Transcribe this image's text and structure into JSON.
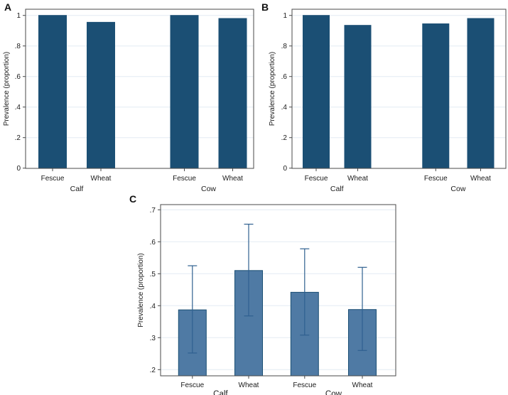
{
  "figure": {
    "title": "",
    "ylabel_shared": "Prevalence (proportion)"
  },
  "colors": {
    "bar_dark": "#1b4f74",
    "bar_medium": "#4f7aa4",
    "bar_border": "#1b4f74",
    "error_bar": "#2f6090",
    "gridline": "#e4ebf4",
    "axis": "#4a4a4a",
    "text": "#1a1a1a",
    "background": "#ffffff"
  },
  "chart_data": [
    {
      "panel_label": "A",
      "type": "bar",
      "categories": [
        "Fescue",
        "Wheat",
        "Fescue",
        "Wheat"
      ],
      "groups": [
        "Calf",
        "Cow"
      ],
      "values": [
        1.0,
        0.955,
        1.0,
        0.98
      ],
      "title": "",
      "xlabel": "",
      "ylabel": "Prevalence (proportion)",
      "yticks": [
        0,
        0.2,
        0.4,
        0.6,
        0.8,
        1
      ],
      "ytick_labels": [
        "0",
        ".2",
        ".4",
        ".6",
        ".8",
        "1"
      ],
      "ylim": [
        0,
        1.04
      ],
      "grid": true,
      "legend": "none",
      "bar_color": "#1b4f74",
      "bar_border_color": "#1b4f74"
    },
    {
      "panel_label": "B",
      "type": "bar",
      "categories": [
        "Fescue",
        "Wheat",
        "Fescue",
        "Wheat"
      ],
      "groups": [
        "Calf",
        "Cow"
      ],
      "values": [
        1.0,
        0.935,
        0.945,
        0.98
      ],
      "title": "",
      "xlabel": "",
      "ylabel": "Prevalence (proportion)",
      "yticks": [
        0,
        0.2,
        0.4,
        0.6,
        0.8,
        1
      ],
      "ytick_labels": [
        "0",
        ".2",
        ".4",
        ".6",
        ".8",
        "1"
      ],
      "ylim": [
        0,
        1.04
      ],
      "grid": true,
      "legend": "none",
      "bar_color": "#1b4f74",
      "bar_border_color": "#1b4f74"
    },
    {
      "panel_label": "C",
      "type": "bar",
      "categories": [
        "Fescue",
        "Wheat",
        "Fescue",
        "Wheat"
      ],
      "groups": [
        "Calf",
        "Cow"
      ],
      "values": [
        0.387,
        0.51,
        0.442,
        0.388
      ],
      "ci_low": [
        0.252,
        0.368,
        0.308,
        0.26
      ],
      "ci_high": [
        0.525,
        0.655,
        0.578,
        0.52
      ],
      "title": "",
      "xlabel": "",
      "ylabel": "Prevalence (proportion)",
      "yticks": [
        0.2,
        0.3,
        0.4,
        0.5,
        0.6,
        0.7
      ],
      "ytick_labels": [
        ".2",
        ".3",
        ".4",
        ".5",
        ".6",
        ".7"
      ],
      "ylim": [
        0.18,
        0.71
      ],
      "grid": true,
      "legend": "none",
      "bar_color": "#4f7aa4",
      "bar_border_color": "#1b4f74",
      "error_bar_color": "#2f6090"
    }
  ]
}
